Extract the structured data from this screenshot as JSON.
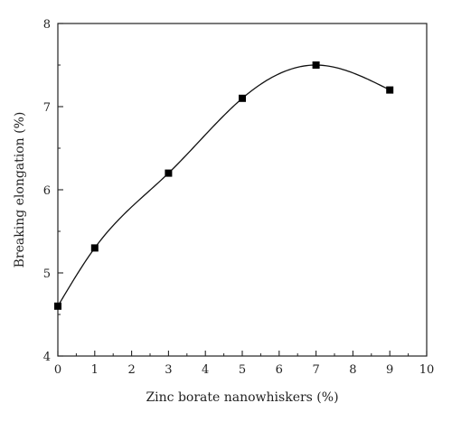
{
  "chart_data": {
    "type": "scatter",
    "title": "",
    "xlabel": "Zinc borate nanowhiskers (%)",
    "ylabel": "Breaking elongation (%)",
    "xlim": [
      0,
      10
    ],
    "ylim": [
      4,
      8
    ],
    "x_ticks": [
      "0",
      "1",
      "2",
      "3",
      "4",
      "5",
      "6",
      "7",
      "8",
      "9",
      "10"
    ],
    "y_ticks": [
      "4",
      "5",
      "6",
      "7",
      "8"
    ],
    "grid": false,
    "smooth_line": true,
    "series": [
      {
        "x": [
          0,
          1,
          3,
          5,
          7,
          9
        ],
        "y": [
          4.6,
          5.3,
          6.2,
          7.1,
          7.5,
          7.2
        ],
        "marker": "square",
        "color": "#000000"
      }
    ]
  }
}
